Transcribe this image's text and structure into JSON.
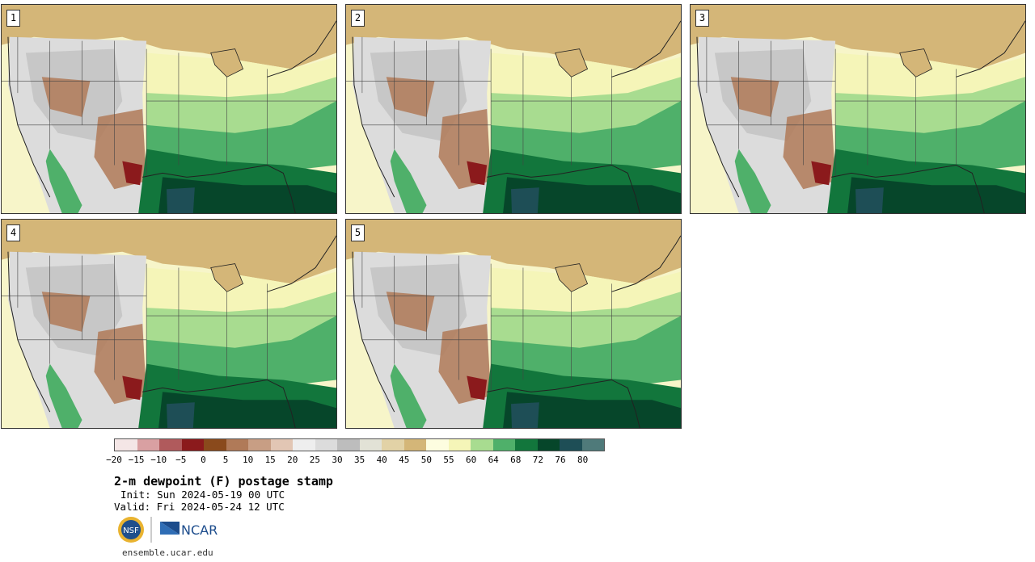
{
  "panels": [
    {
      "label": "1"
    },
    {
      "label": "2"
    },
    {
      "label": "3"
    },
    {
      "label": "4"
    },
    {
      "label": "5"
    }
  ],
  "legend": {
    "colors": [
      "#f4e6e6",
      "#d9a0a2",
      "#b05a5c",
      "#8b1a1c",
      "#8a4a1c",
      "#b07a58",
      "#c89e84",
      "#e2c6b4",
      "#eeeeee",
      "#dcdcdc",
      "#bdbdbd",
      "#e2e2d6",
      "#e2d2a6",
      "#d4b678",
      "#fdfde0",
      "#f5f5b8",
      "#a8dc90",
      "#4fb06a",
      "#12763c",
      "#06462a",
      "#1e4e56",
      "#4f7a7a"
    ],
    "tick_labels": [
      "−20",
      "−15",
      "−10",
      "−5",
      "0",
      "5",
      "10",
      "15",
      "20",
      "25",
      "30",
      "35",
      "40",
      "45",
      "50",
      "55",
      "60",
      "64",
      "68",
      "72",
      "76",
      "80"
    ]
  },
  "title": "2-m dewpoint (F) postage stamp",
  "init": "Init: Sun 2024-05-19 00 UTC",
  "valid": "Valid: Fri 2024-05-24 12 UTC",
  "logos": {
    "nsf": "NSF",
    "ncar": "NCAR"
  },
  "site": "ensemble.ucar.edu"
}
